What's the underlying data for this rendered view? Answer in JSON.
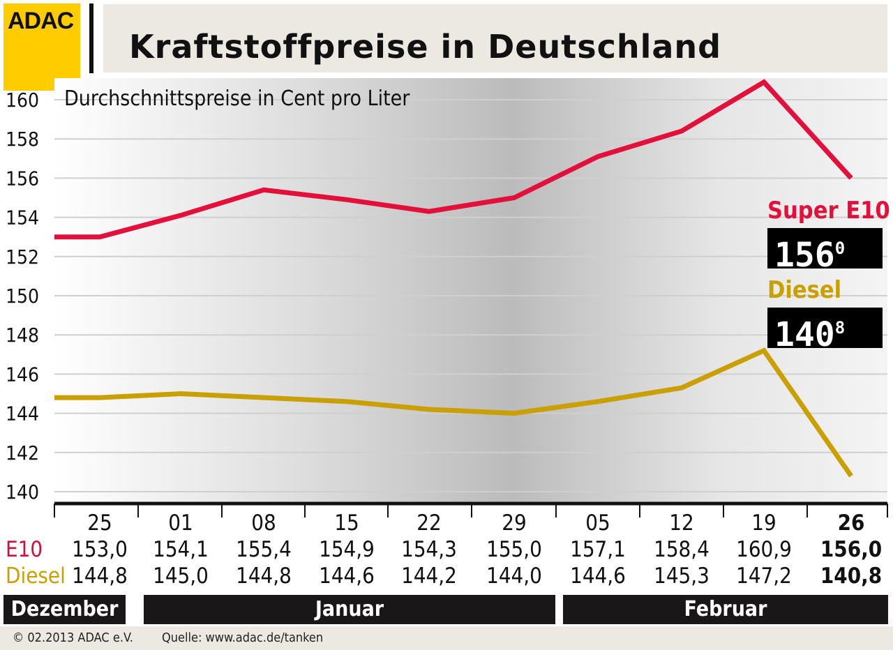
{
  "logo": "ADAC",
  "title": "Kraftstoffpreise in Deutschland",
  "subtitle": "Durchschnittspreise in Cent pro Liter",
  "legend": {
    "e10": "Super E10",
    "diesel": "Diesel"
  },
  "displays": {
    "e10": {
      "main": "156",
      "sup": "0"
    },
    "diesel": {
      "main": "140",
      "sup": "8"
    }
  },
  "row_labels": {
    "e10": "E10",
    "diesel": "Diesel"
  },
  "months": [
    "Dezember",
    "Januar",
    "Februar"
  ],
  "footer": {
    "copyright": "© 02.2013  ADAC e.V.",
    "source": "Quelle: www.adac.de/tanken"
  },
  "chart_data": {
    "type": "line",
    "title": "Kraftstoffpreise in Deutschland",
    "subtitle": "Durchschnittspreise in Cent pro Liter",
    "categories": [
      "25",
      "01",
      "08",
      "15",
      "22",
      "29",
      "05",
      "12",
      "19",
      "26"
    ],
    "category_labels": [
      "25",
      "01",
      "08",
      "15",
      "22",
      "29",
      "05",
      "12",
      "19",
      "26"
    ],
    "series": [
      {
        "name": "Super E10",
        "color": "#e3103c",
        "values": [
          153.0,
          154.1,
          155.4,
          154.9,
          154.3,
          155.0,
          157.1,
          158.4,
          160.9,
          156.0
        ],
        "labels": [
          "153,0",
          "154,1",
          "155,4",
          "154,9",
          "154,3",
          "155,0",
          "157,1",
          "158,4",
          "160,9",
          "156,0"
        ]
      },
      {
        "name": "Diesel",
        "color": "#c9a000",
        "values": [
          144.8,
          145.0,
          144.8,
          144.6,
          144.2,
          144.0,
          144.6,
          145.3,
          147.2,
          140.8
        ],
        "labels": [
          "144,8",
          "145,0",
          "144,8",
          "144,6",
          "144,2",
          "144,0",
          "144,6",
          "145,3",
          "147,2",
          "140,8"
        ]
      }
    ],
    "ylim": [
      140,
      160
    ],
    "yticks": [
      "140",
      "142",
      "144",
      "146",
      "148",
      "150",
      "152",
      "154",
      "156",
      "158",
      "160"
    ],
    "grid": true
  }
}
